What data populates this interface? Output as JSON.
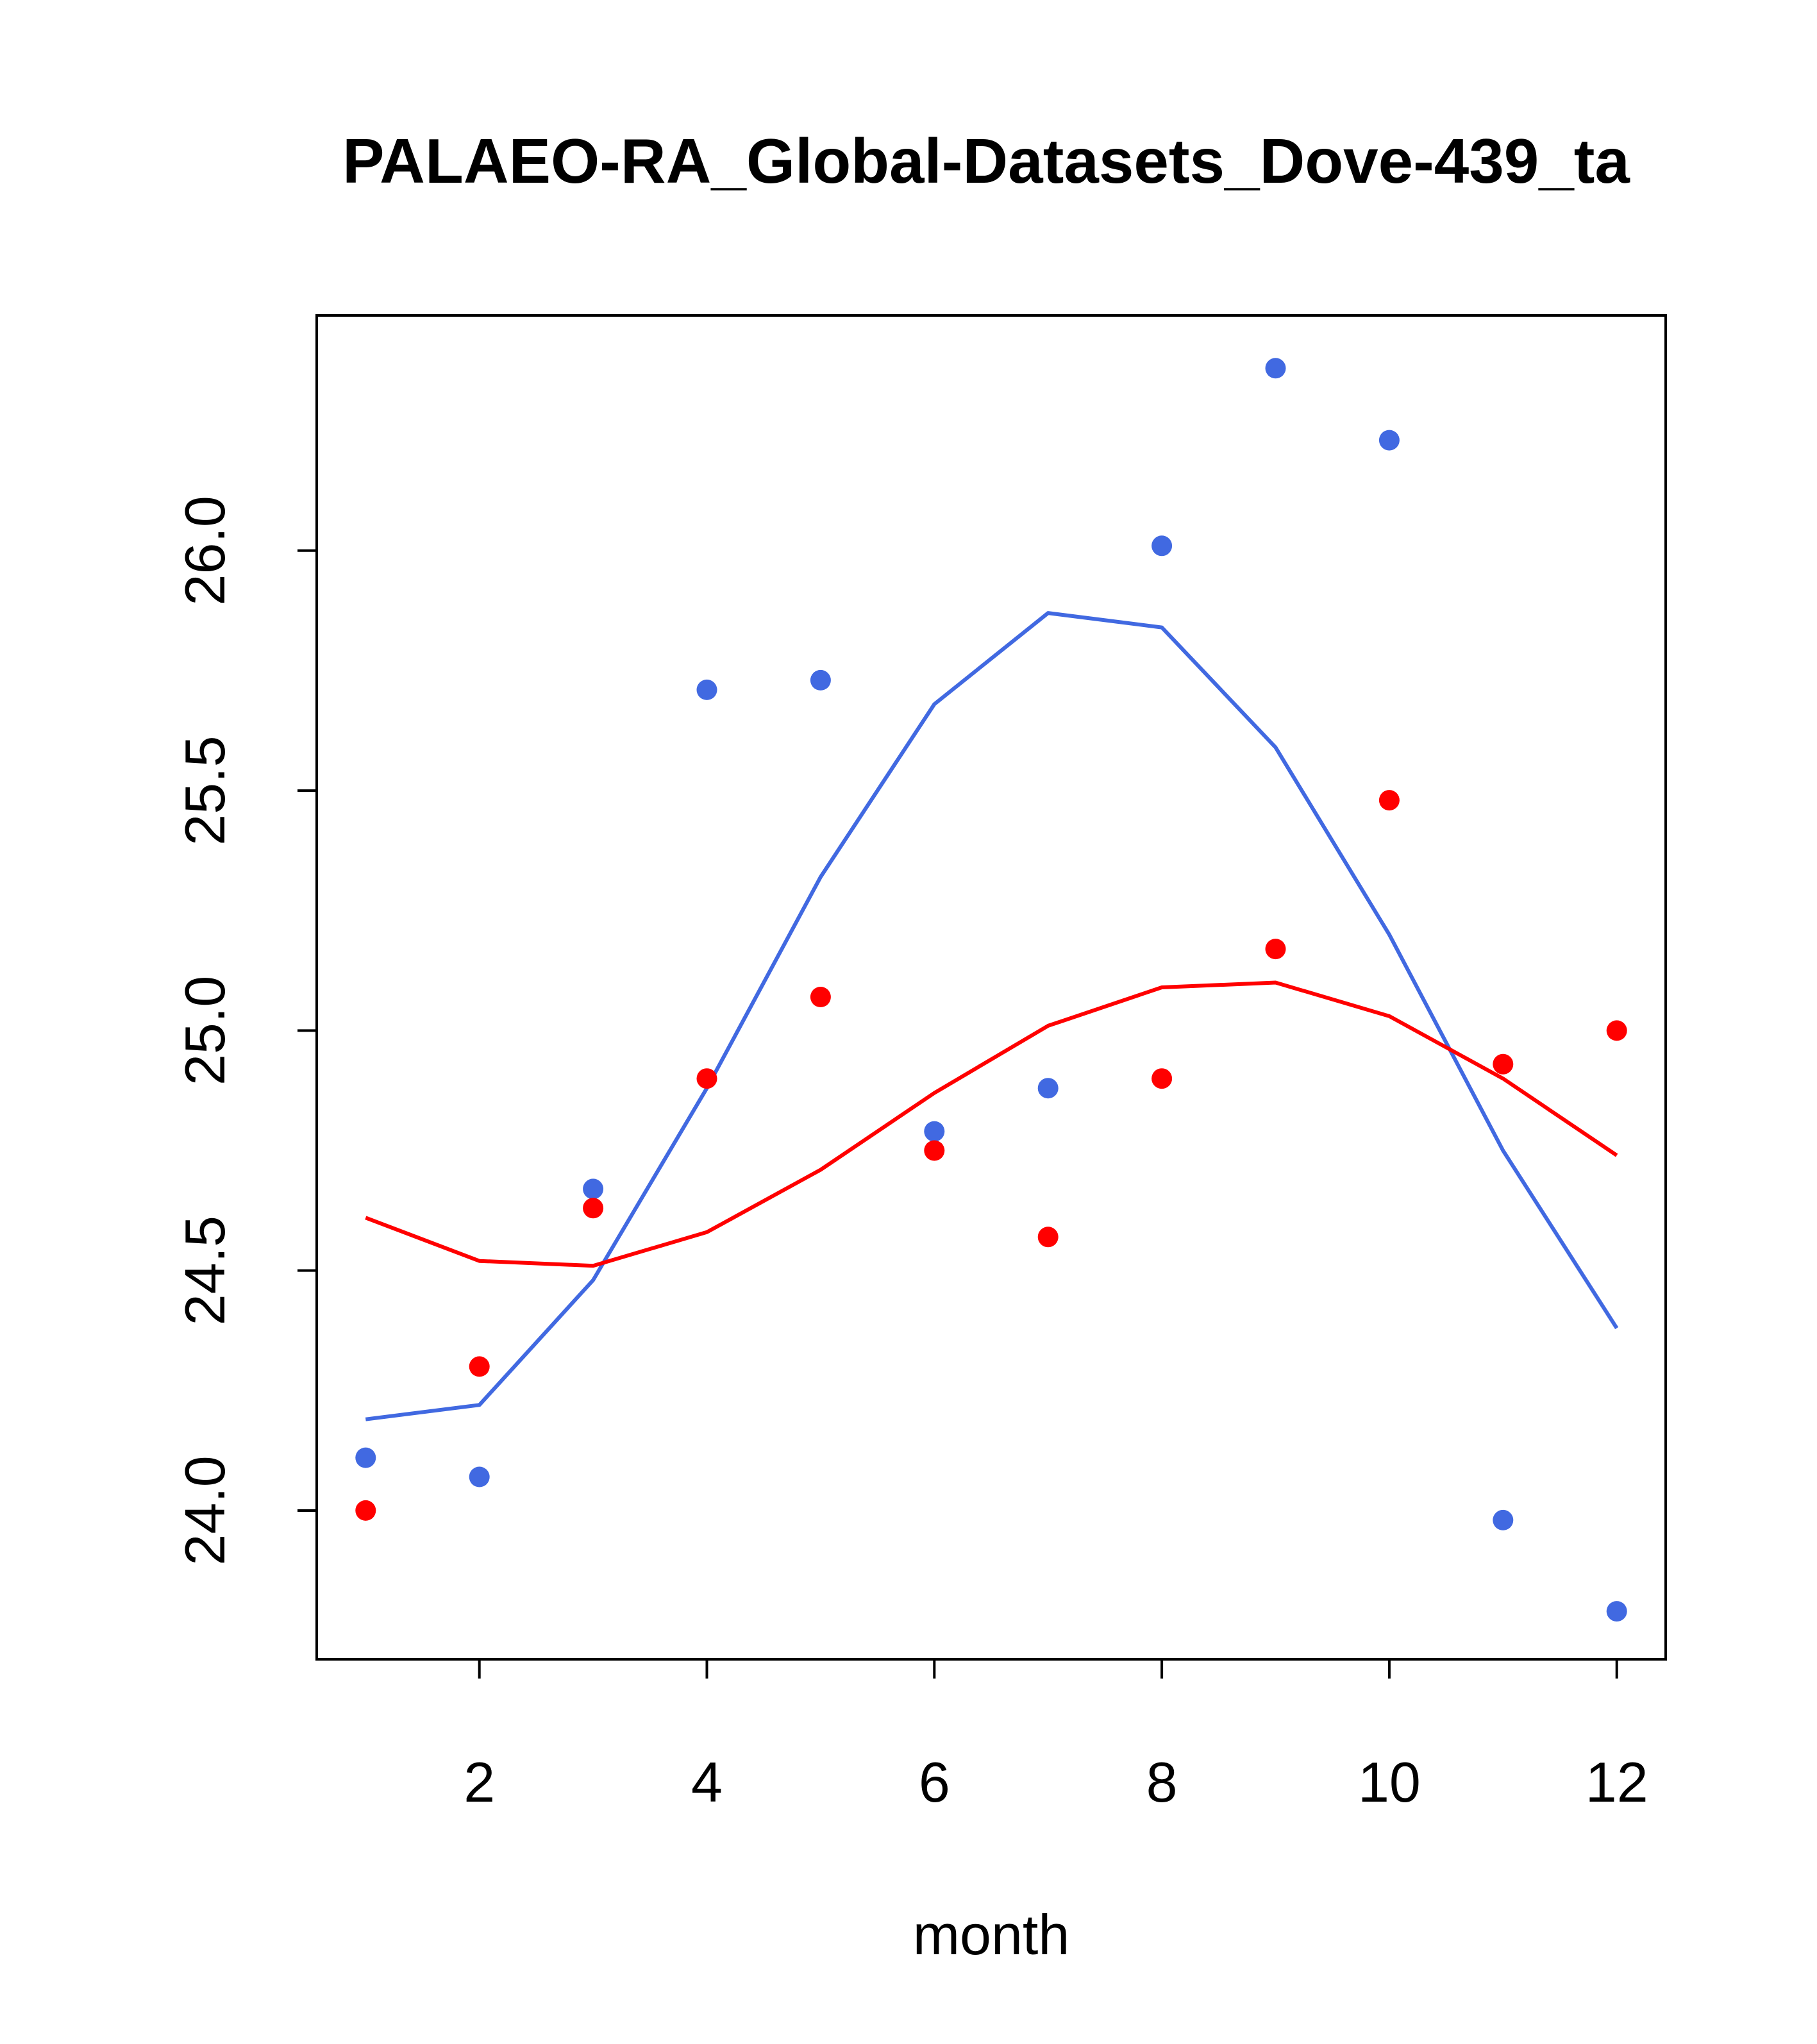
{
  "chart_data": {
    "type": "scatter",
    "title": "PALAEO-RA_Global-Datasets_Dove-439_ta",
    "xlabel": "month",
    "ylabel": "",
    "xlim": [
      0.57,
      12.43
    ],
    "ylim": [
      23.69,
      26.49
    ],
    "x_ticks": [
      2,
      4,
      6,
      8,
      10,
      12
    ],
    "x_tick_labels": [
      "2",
      "4",
      "6",
      "8",
      "10",
      "12"
    ],
    "y_ticks": [
      24.0,
      24.5,
      25.0,
      25.5,
      26.0
    ],
    "y_tick_labels": [
      "24.0",
      "24.5",
      "25.0",
      "25.5",
      "26.0"
    ],
    "grid": false,
    "legend": "none",
    "x": [
      1,
      2,
      3,
      4,
      5,
      6,
      7,
      8,
      9,
      10,
      11,
      12
    ],
    "series": [
      {
        "name": "blue points",
        "kind": "points",
        "color": "#4169E1",
        "values": [
          24.11,
          24.07,
          24.67,
          25.71,
          25.73,
          24.79,
          24.88,
          26.01,
          26.38,
          26.23,
          23.98,
          23.79
        ]
      },
      {
        "name": "red points",
        "kind": "points",
        "color": "#FF0000",
        "values": [
          24.0,
          24.3,
          24.63,
          24.9,
          25.07,
          24.75,
          24.57,
          24.9,
          25.17,
          25.48,
          24.93,
          25.0
        ]
      },
      {
        "name": "blue smooth",
        "kind": "line",
        "color": "#4169E1",
        "values": [
          24.19,
          24.22,
          24.48,
          24.88,
          25.32,
          25.68,
          25.87,
          25.84,
          25.59,
          25.2,
          24.75,
          24.38
        ]
      },
      {
        "name": "red smooth",
        "kind": "line",
        "color": "#FF0000",
        "values": [
          24.61,
          24.52,
          24.51,
          24.58,
          24.71,
          24.87,
          25.01,
          25.09,
          25.1,
          25.03,
          24.9,
          24.74
        ]
      }
    ]
  }
}
